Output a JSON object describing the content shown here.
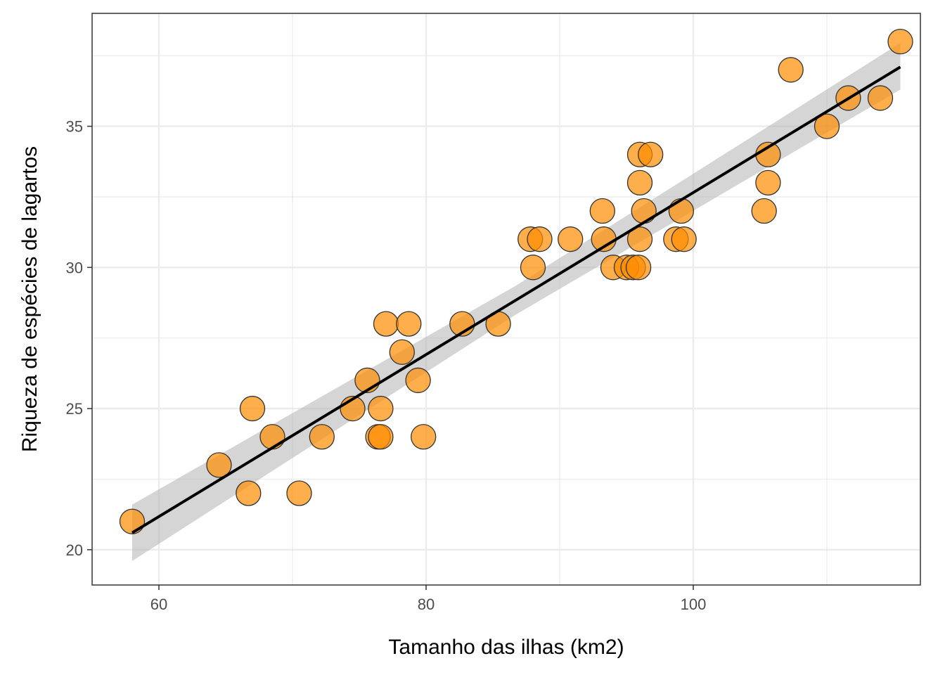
{
  "chart_data": {
    "type": "scatter",
    "title": "",
    "xlabel": "Tamanho das ilhas (km2)",
    "ylabel": "Riqueza de espécies de lagartos",
    "xlim": [
      55,
      117
    ],
    "ylim": [
      18.75,
      39.0
    ],
    "x_ticks": [
      60,
      80,
      100
    ],
    "y_ticks": [
      20,
      25,
      30,
      35
    ],
    "grid": true,
    "legend": "none",
    "colors": {
      "point_fill": "#FF8C00",
      "point_stroke": "#333333",
      "line": "#000000",
      "ribbon": "#b3b3b3",
      "grid": "#ebebeb",
      "panel_border": "#333333"
    },
    "points": [
      {
        "x": 58.0,
        "y": 21
      },
      {
        "x": 64.5,
        "y": 23
      },
      {
        "x": 66.7,
        "y": 22
      },
      {
        "x": 67.0,
        "y": 25
      },
      {
        "x": 68.5,
        "y": 24
      },
      {
        "x": 70.5,
        "y": 22
      },
      {
        "x": 72.2,
        "y": 24
      },
      {
        "x": 74.5,
        "y": 25
      },
      {
        "x": 75.6,
        "y": 26
      },
      {
        "x": 76.4,
        "y": 24
      },
      {
        "x": 76.6,
        "y": 24
      },
      {
        "x": 76.6,
        "y": 25
      },
      {
        "x": 77.0,
        "y": 28
      },
      {
        "x": 78.2,
        "y": 27
      },
      {
        "x": 78.7,
        "y": 28
      },
      {
        "x": 79.4,
        "y": 26
      },
      {
        "x": 79.8,
        "y": 24
      },
      {
        "x": 82.7,
        "y": 28
      },
      {
        "x": 85.4,
        "y": 28
      },
      {
        "x": 87.8,
        "y": 31
      },
      {
        "x": 88.0,
        "y": 30
      },
      {
        "x": 88.5,
        "y": 31
      },
      {
        "x": 90.8,
        "y": 31
      },
      {
        "x": 93.2,
        "y": 32
      },
      {
        "x": 93.3,
        "y": 31
      },
      {
        "x": 94.0,
        "y": 30
      },
      {
        "x": 95.0,
        "y": 30
      },
      {
        "x": 95.5,
        "y": 30
      },
      {
        "x": 95.9,
        "y": 30
      },
      {
        "x": 96.0,
        "y": 31
      },
      {
        "x": 96.0,
        "y": 34
      },
      {
        "x": 96.0,
        "y": 33
      },
      {
        "x": 96.3,
        "y": 32
      },
      {
        "x": 96.8,
        "y": 34
      },
      {
        "x": 98.7,
        "y": 31
      },
      {
        "x": 99.1,
        "y": 32
      },
      {
        "x": 99.3,
        "y": 31
      },
      {
        "x": 105.3,
        "y": 32
      },
      {
        "x": 105.6,
        "y": 33
      },
      {
        "x": 105.6,
        "y": 34
      },
      {
        "x": 107.3,
        "y": 37
      },
      {
        "x": 110.0,
        "y": 35
      },
      {
        "x": 111.6,
        "y": 36
      },
      {
        "x": 114.0,
        "y": 36
      },
      {
        "x": 115.5,
        "y": 38
      }
    ],
    "fit": {
      "method": "linear",
      "x_range": [
        58.0,
        115.5
      ],
      "y_range": [
        20.6,
        37.1
      ],
      "ribbon": {
        "lower": [
          19.6,
          36.3
        ],
        "upper": [
          21.6,
          37.95
        ]
      }
    }
  }
}
